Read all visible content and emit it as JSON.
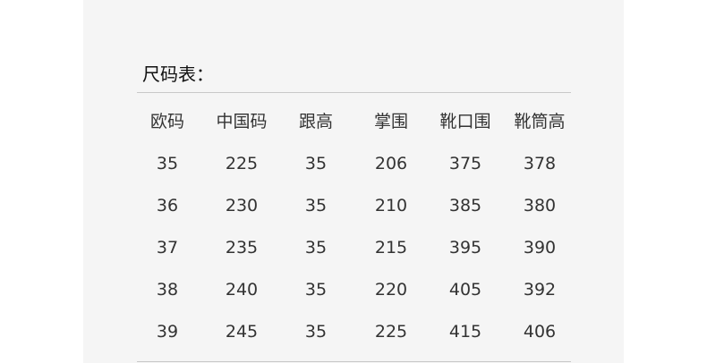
{
  "title": "尺码表：",
  "table": {
    "headers": [
      "欧码",
      "中国码",
      "跟高",
      "掌围",
      "靴口围",
      "靴筒高"
    ],
    "rows": [
      [
        "35",
        "225",
        "35",
        "206",
        "375",
        "378"
      ],
      [
        "36",
        "230",
        "35",
        "210",
        "385",
        "380"
      ],
      [
        "37",
        "235",
        "35",
        "215",
        "395",
        "390"
      ],
      [
        "38",
        "240",
        "35",
        "220",
        "405",
        "392"
      ],
      [
        "39",
        "245",
        "35",
        "225",
        "415",
        "406"
      ]
    ]
  }
}
